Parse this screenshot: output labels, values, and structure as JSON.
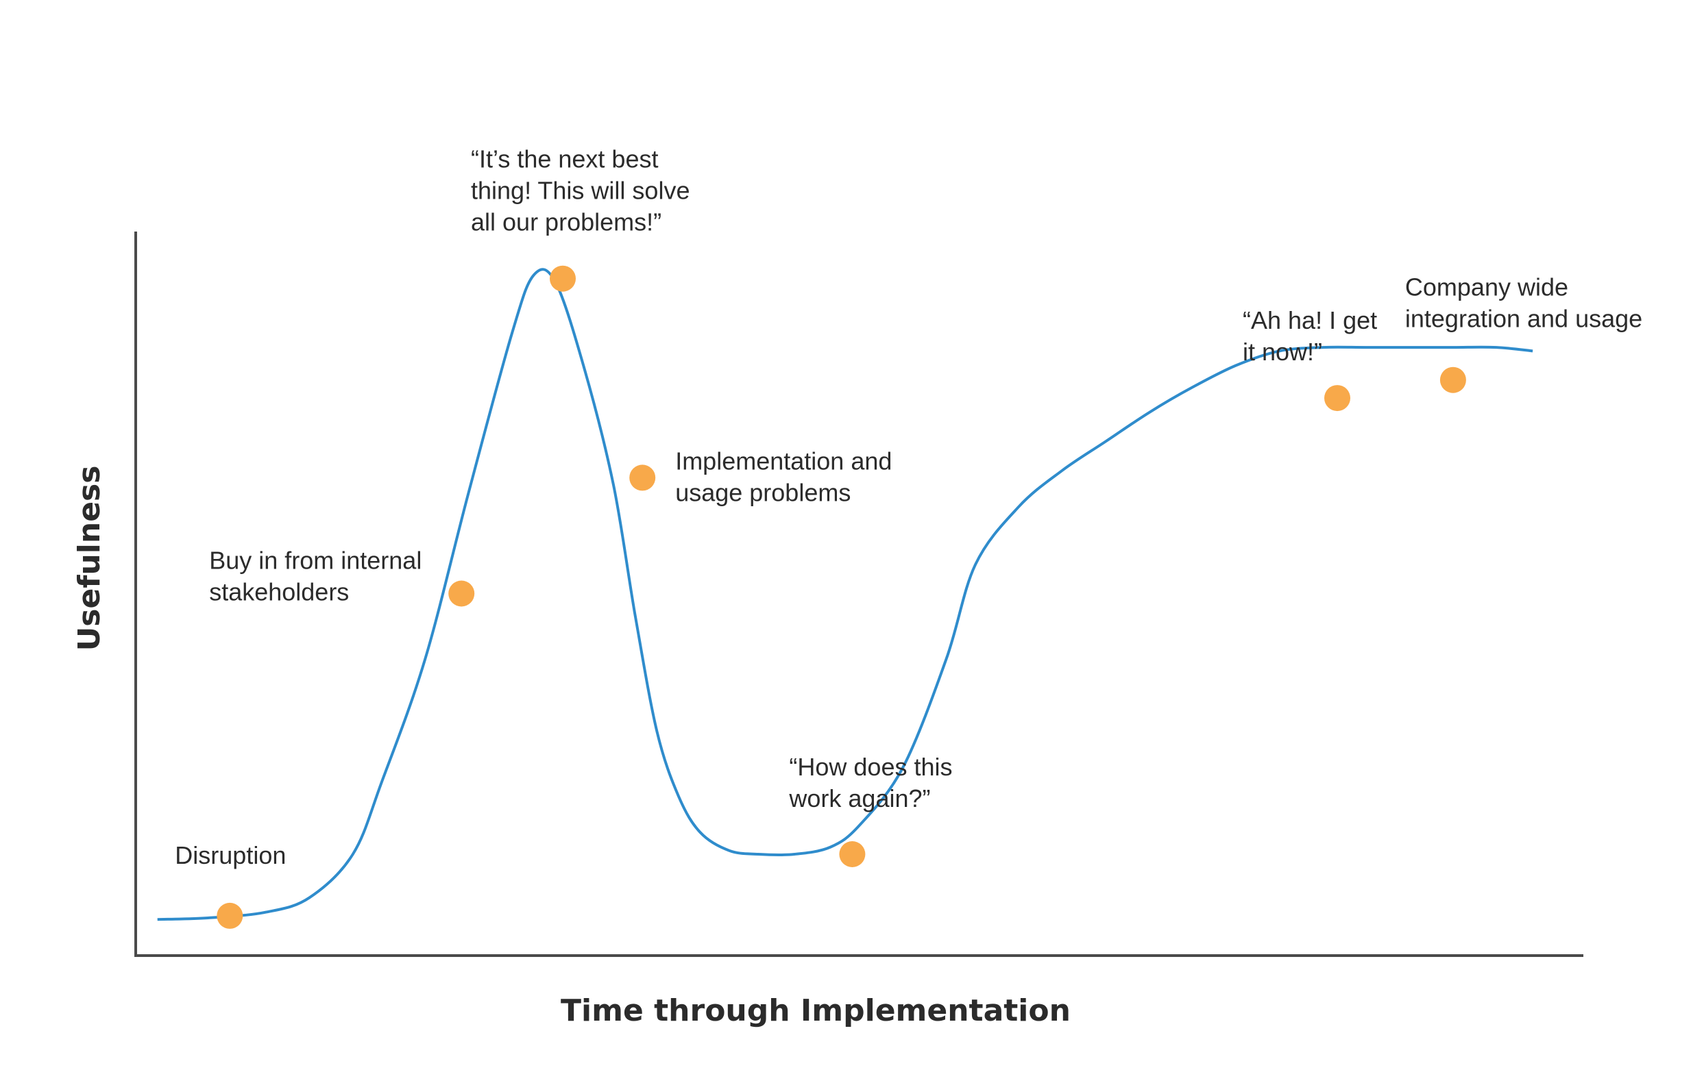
{
  "chart_data": {
    "type": "line",
    "title": "",
    "xlabel": "Time through Implementation",
    "ylabel": "Usefulness",
    "xlim": [
      0,
      100
    ],
    "ylim": [
      0,
      100
    ],
    "grid": false,
    "legend": "none",
    "show_tick_labels": false,
    "colors": {
      "line": "#2f8ccc",
      "marker": "#f8a94a",
      "axis": "#4a4a4a",
      "text": "#2b2b2b"
    },
    "series": [
      {
        "values_x": [
          1.5,
          5,
          9,
          12,
          15,
          17,
          20,
          23,
          26,
          27.5,
          29,
          31,
          33,
          34.5,
          36,
          37.5,
          39,
          41,
          43,
          45.5,
          48,
          50,
          53,
          56,
          58,
          61,
          64,
          67,
          70,
          73,
          76,
          79,
          82,
          85,
          88,
          91,
          94,
          96.5
        ],
        "values_y": [
          5,
          5.2,
          6,
          8,
          14,
          24,
          41,
          64,
          86,
          94,
          93,
          81,
          65,
          47,
          31,
          22,
          17,
          14.5,
          14,
          14,
          15,
          18,
          26,
          41,
          54,
          62,
          67,
          71,
          75,
          78.5,
          81.5,
          83.5,
          84,
          84,
          84,
          84,
          84,
          83.5
        ]
      }
    ],
    "annotations": [
      {
        "label": "Disruption",
        "x": 6.5,
        "y": 5.5
      },
      {
        "label": "Buy in from internal stakeholders",
        "x": 22.5,
        "y": 50
      },
      {
        "label": "“It’s the next best thing! This will solve all our problems!”",
        "x": 29.5,
        "y": 93.5
      },
      {
        "label": "Implementation and usage problems",
        "x": 35,
        "y": 66
      },
      {
        "label": "“How does this work again?”",
        "x": 49.5,
        "y": 14
      },
      {
        "label": "“Ah ha! I get it now!”",
        "x": 83,
        "y": 77
      },
      {
        "label": "Company wide integration and usage",
        "x": 91,
        "y": 79.5
      }
    ],
    "annotation_lines": [
      [
        "Disruption"
      ],
      [
        "Buy in from internal",
        "stakeholders"
      ],
      [
        "“It’s the next best",
        "thing! This will solve",
        "all our problems!”"
      ],
      [
        "Implementation and",
        "usage problems"
      ],
      [
        "“How does this",
        "work again?”"
      ],
      [
        "“Ah ha! I get",
        "it now!”"
      ],
      [
        "Company wide",
        "integration and usage"
      ]
    ]
  }
}
